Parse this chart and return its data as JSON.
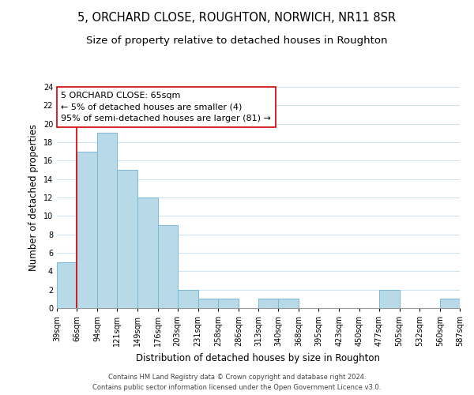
{
  "title": "5, ORCHARD CLOSE, ROUGHTON, NORWICH, NR11 8SR",
  "subtitle": "Size of property relative to detached houses in Roughton",
  "xlabel": "Distribution of detached houses by size in Roughton",
  "ylabel": "Number of detached properties",
  "bin_edges": [
    39,
    66,
    94,
    121,
    149,
    176,
    203,
    231,
    258,
    286,
    313,
    340,
    368,
    395,
    423,
    450,
    477,
    505,
    532,
    560,
    587
  ],
  "bar_heights": [
    5,
    17,
    19,
    15,
    12,
    9,
    2,
    1,
    1,
    0,
    1,
    1,
    0,
    0,
    0,
    0,
    2,
    0,
    0,
    1
  ],
  "bar_color": "#b8d9e8",
  "bar_edge_color": "#7ab8d4",
  "property_line_x": 66,
  "property_line_color": "#cc0000",
  "annotation_line1": "5 ORCHARD CLOSE: 65sqm",
  "annotation_line2": "← 5% of detached houses are smaller (4)",
  "annotation_line3": "95% of semi-detached houses are larger (81) →",
  "ylim": [
    0,
    24
  ],
  "yticks": [
    0,
    2,
    4,
    6,
    8,
    10,
    12,
    14,
    16,
    18,
    20,
    22,
    24
  ],
  "footer_line1": "Contains HM Land Registry data © Crown copyright and database right 2024.",
  "footer_line2": "Contains public sector information licensed under the Open Government Licence v3.0.",
  "bg_color": "#ffffff",
  "grid_color": "#cce4f0",
  "title_fontsize": 10.5,
  "subtitle_fontsize": 9.5,
  "axis_label_fontsize": 8.5,
  "tick_fontsize": 7,
  "annotation_fontsize": 8,
  "footer_fontsize": 6
}
